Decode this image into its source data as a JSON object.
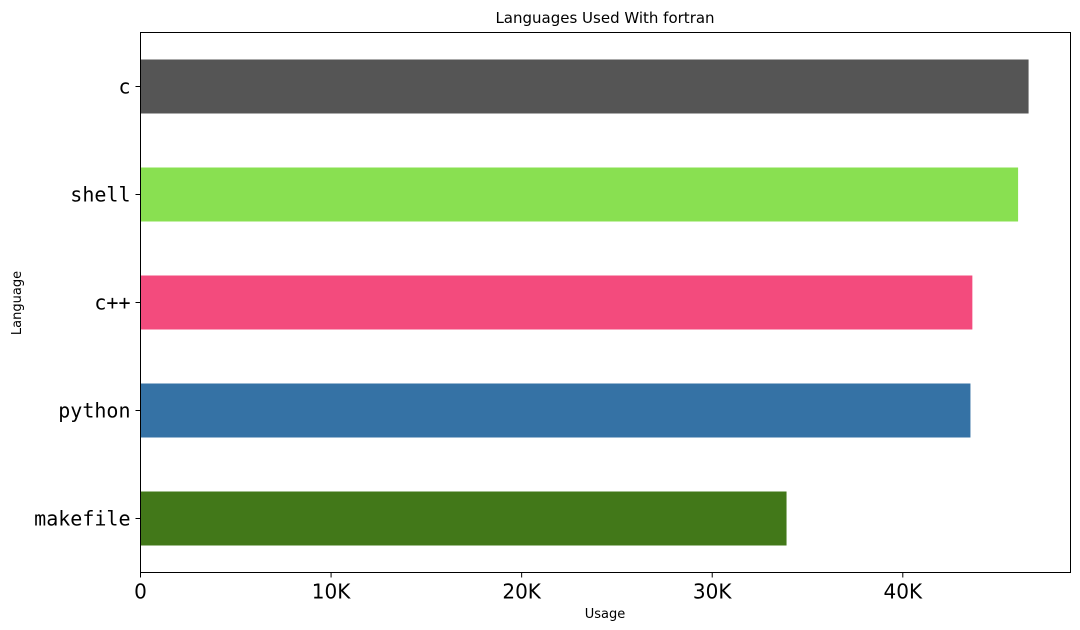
{
  "chart_data": {
    "type": "bar",
    "orientation": "horizontal",
    "title": "Languages Used With fortran",
    "xlabel": "Usage",
    "ylabel": "Language",
    "categories": [
      "c",
      "shell",
      "c++",
      "python",
      "makefile"
    ],
    "values": [
      46600,
      46050,
      43650,
      43550,
      33900
    ],
    "colors": [
      "#555555",
      "#89e051",
      "#f34b7d",
      "#3572a5",
      "#427819"
    ],
    "xlim": [
      0,
      48800
    ],
    "xticks": [
      0,
      10000,
      20000,
      30000,
      40000
    ],
    "xtick_labels": [
      "0",
      "10K",
      "20K",
      "30K",
      "40K"
    ],
    "grid": false,
    "legend": "none"
  }
}
